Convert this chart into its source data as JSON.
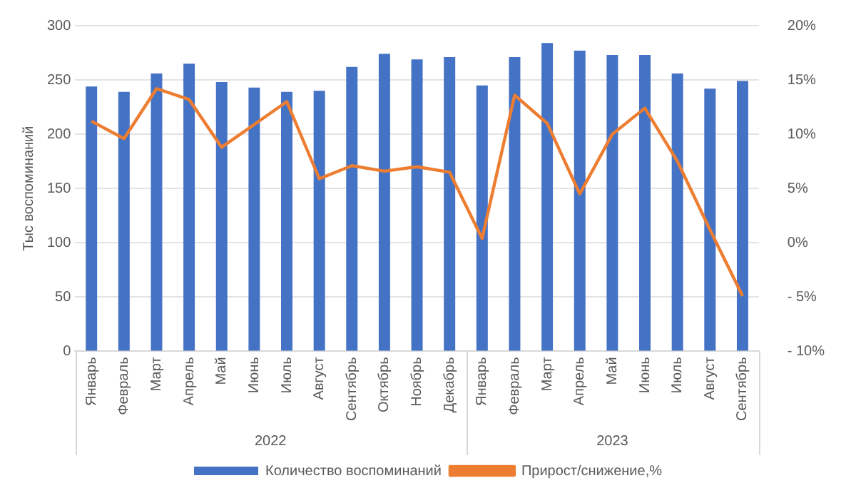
{
  "chart_data": {
    "type": "bar",
    "ylabel": "Тыс воспоминаний",
    "categories": [
      "Январь",
      "Февраль",
      "Март",
      "Апрель",
      "Май",
      "Июнь",
      "Июль",
      "Август",
      "Сентябрь",
      "Октябрь",
      "Ноябрь",
      "Декабрь",
      "Январь",
      "Февраль",
      "Март",
      "Апрель",
      "Май",
      "Июнь",
      "Июль",
      "Август",
      "Сентябрь"
    ],
    "series": [
      {
        "name": "Количество воспоминаний",
        "color": "#4472c4",
        "values": [
          244,
          239,
          256,
          265,
          248,
          243,
          239,
          240,
          262,
          274,
          269,
          271,
          245,
          271,
          284,
          277,
          273,
          273,
          256,
          242,
          249
        ]
      },
      {
        "name": "Прирост/снижение,%",
        "type": "line",
        "axis": "y2",
        "color": "#ed7d31",
        "values": [
          11.2,
          9.6,
          14.2,
          13.2,
          8.8,
          10.9,
          13.0,
          5.9,
          7.1,
          6.6,
          7.0,
          6.5,
          0.4,
          13.6,
          11.0,
          4.5,
          10.0,
          12.4,
          7.5,
          1.2,
          -4.9
        ]
      }
    ],
    "ylim": [
      0,
      300
    ],
    "yticks": [
      0,
      50,
      100,
      150,
      200,
      250,
      300
    ],
    "y2lim": [
      -10,
      20
    ],
    "y2ticks": [
      {
        "value": -10,
        "label": "- 10%"
      },
      {
        "value": -5,
        "label": "- 5%"
      },
      {
        "value": 0,
        "label": "0%"
      },
      {
        "value": 5,
        "label": "5%"
      },
      {
        "value": 10,
        "label": "10%"
      },
      {
        "value": 15,
        "label": "15%"
      },
      {
        "value": 20,
        "label": "20%"
      }
    ],
    "annotations": [
      "2022",
      "2023"
    ],
    "grid": "y",
    "legend": "bottom",
    "marker": "none",
    "line_style": "solid"
  }
}
